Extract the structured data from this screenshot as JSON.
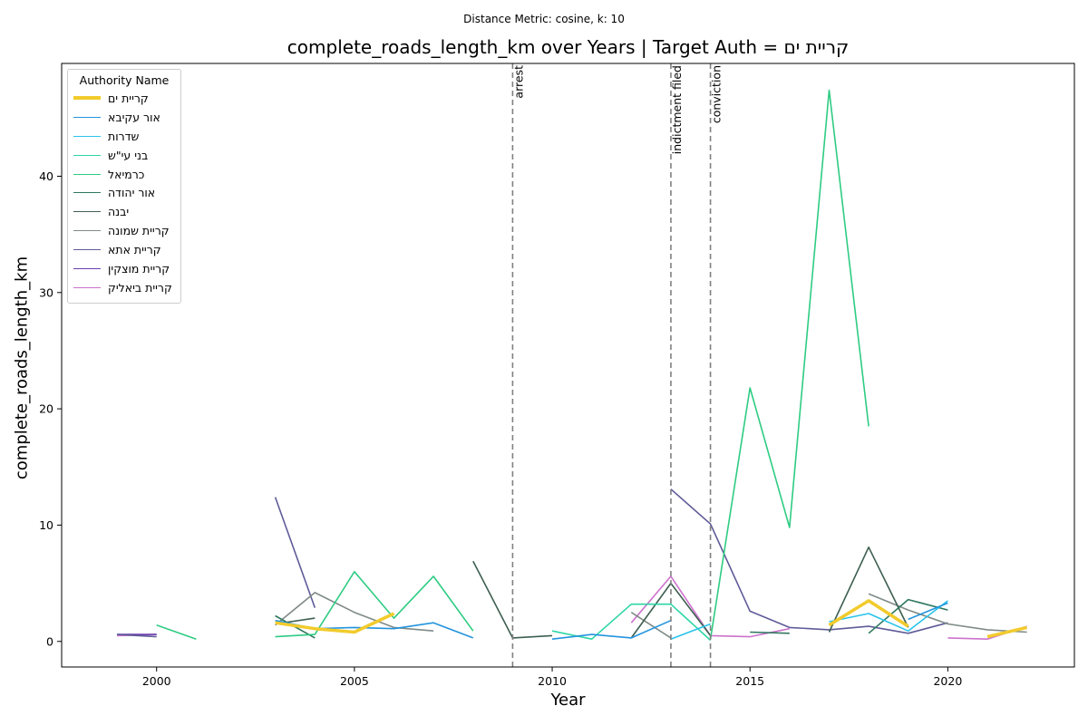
{
  "chart_data": {
    "type": "line",
    "suptitle": "Distance Metric: cosine, k: 10",
    "title": "complete_roads_length_km over Years | Target Auth = קריית ים",
    "xlabel": "Year",
    "ylabel": "complete_roads_length_km",
    "xlim": [
      1997.6,
      2023.2
    ],
    "ylim": [
      -2.2,
      49.7
    ],
    "xticks": [
      2000,
      2005,
      2010,
      2015,
      2020
    ],
    "yticks": [
      0,
      10,
      20,
      30,
      40
    ],
    "grid": false,
    "legend": {
      "title": "Authority Name",
      "placement": "top-left"
    },
    "events": [
      {
        "x": 2009,
        "label": "arrest"
      },
      {
        "x": 2013,
        "label": "indictment filed"
      },
      {
        "x": 2014,
        "label": "conviction"
      }
    ],
    "event_color": "#808080",
    "series": [
      {
        "name": "קריית ים",
        "color": "#f2cb2c",
        "width": 3.5,
        "points": [
          [
            2003,
            1.6
          ],
          [
            2004,
            1.1
          ],
          [
            2005,
            0.8
          ],
          [
            2006,
            2.4
          ],
          null,
          [
            2017,
            1.4
          ],
          [
            2018,
            3.5
          ],
          [
            2019,
            1.3
          ],
          null,
          [
            2021,
            0.4
          ],
          [
            2022,
            1.2
          ]
        ]
      },
      {
        "name": "אור עקיבא",
        "color": "#2394de",
        "width": 1.6,
        "points": [
          [
            2003,
            1.8
          ],
          [
            2004,
            1.1
          ],
          [
            2005,
            1.2
          ],
          [
            2006,
            1.1
          ],
          [
            2007,
            1.6
          ],
          [
            2008,
            0.3
          ],
          null,
          [
            2010,
            0.2
          ],
          [
            2011,
            0.6
          ],
          [
            2012,
            0.3
          ],
          [
            2013,
            1.8
          ],
          null,
          [
            2019,
            1.9
          ],
          [
            2020,
            3.3
          ]
        ]
      },
      {
        "name": "שדרות",
        "color": "#2ac3ea",
        "width": 1.6,
        "points": [
          [
            2013,
            0.2
          ],
          [
            2014,
            1.5
          ],
          null,
          [
            2017,
            1.7
          ],
          [
            2018,
            2.4
          ],
          [
            2019,
            0.9
          ],
          [
            2020,
            3.5
          ]
        ]
      },
      {
        "name": "בני עי\"ש",
        "color": "#2ed6a6",
        "width": 1.6,
        "points": [
          [
            2010,
            0.9
          ],
          [
            2011,
            0.2
          ],
          [
            2012,
            3.2
          ],
          [
            2013,
            3.2
          ],
          [
            2014,
            0.1
          ]
        ]
      },
      {
        "name": "כרמיאל",
        "color": "#2ecc82",
        "width": 1.6,
        "points": [
          [
            2000,
            1.4
          ],
          [
            2001,
            0.2
          ],
          null,
          [
            2003,
            0.4
          ],
          [
            2004,
            0.6
          ],
          [
            2005,
            6.0
          ],
          [
            2006,
            2.0
          ],
          [
            2007,
            5.6
          ],
          [
            2008,
            0.9
          ],
          null,
          [
            2014,
            0.2
          ],
          [
            2015,
            21.8
          ],
          [
            2016,
            9.8
          ],
          [
            2017,
            47.4
          ],
          [
            2018,
            18.5
          ]
        ]
      },
      {
        "name": "אור יהודה",
        "color": "#2f7860",
        "width": 1.6,
        "points": [
          [
            2003,
            2.2
          ],
          [
            2004,
            0.3
          ],
          null,
          [
            2015,
            0.8
          ],
          [
            2016,
            0.7
          ],
          null,
          [
            2018,
            0.7
          ],
          [
            2019,
            3.6
          ],
          [
            2020,
            2.7
          ]
        ]
      },
      {
        "name": "יבנה",
        "color": "#3d5f50",
        "width": 1.6,
        "points": [
          [
            2003,
            1.5
          ],
          [
            2004,
            2.0
          ],
          null,
          [
            2008,
            6.9
          ],
          [
            2009,
            0.3
          ],
          [
            2010,
            0.5
          ],
          null,
          [
            2012,
            0.3
          ],
          [
            2013,
            5.0
          ],
          [
            2014,
            0.5
          ],
          null,
          [
            2017,
            0.8
          ],
          [
            2018,
            8.1
          ],
          [
            2019,
            1.2
          ]
        ]
      },
      {
        "name": "קריית שמונה",
        "color": "#7f8a86",
        "width": 1.6,
        "points": [
          [
            2003,
            1.4
          ],
          [
            2004,
            4.2
          ],
          [
            2005,
            2.5
          ],
          [
            2006,
            1.2
          ],
          [
            2007,
            0.9
          ],
          null,
          [
            2012,
            2.5
          ],
          [
            2013,
            0.3
          ],
          null,
          [
            2018,
            4.1
          ],
          [
            2019,
            2.7
          ],
          [
            2020,
            1.5
          ],
          [
            2021,
            1.0
          ],
          [
            2022,
            0.8
          ]
        ]
      },
      {
        "name": "קריית אתא",
        "color": "#5f5b98",
        "width": 1.6,
        "points": [
          [
            1999,
            0.6
          ],
          [
            2000,
            0.4
          ],
          null,
          [
            2003,
            12.4
          ],
          [
            2004,
            2.9
          ],
          null,
          [
            2013,
            13.1
          ],
          [
            2014,
            10.1
          ],
          [
            2015,
            2.6
          ],
          [
            2016,
            1.2
          ],
          [
            2017,
            1.0
          ],
          [
            2018,
            1.3
          ],
          [
            2019,
            0.7
          ],
          [
            2020,
            1.6
          ]
        ]
      },
      {
        "name": "קריית מוצקין",
        "color": "#6a3fb0",
        "width": 1.6,
        "points": [
          [
            1999,
            0.6
          ],
          [
            2000,
            0.6
          ]
        ]
      },
      {
        "name": "קריית ביאליק",
        "color": "#cc72cc",
        "width": 1.6,
        "points": [
          [
            1999,
            0.5
          ],
          [
            2000,
            0.6
          ],
          null,
          [
            2012,
            1.6
          ],
          [
            2013,
            5.6
          ],
          [
            2014,
            0.5
          ],
          [
            2015,
            0.4
          ],
          [
            2016,
            1.1
          ],
          null,
          [
            2020,
            0.3
          ],
          [
            2021,
            0.2
          ],
          [
            2022,
            1.3
          ]
        ]
      }
    ]
  }
}
